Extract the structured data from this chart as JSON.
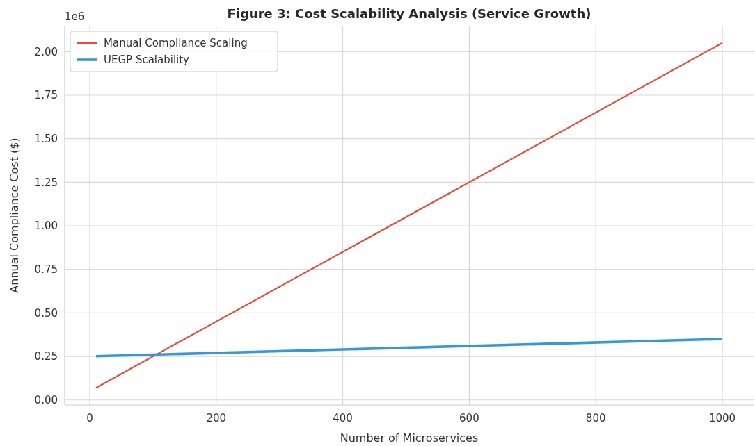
{
  "chart_data": {
    "type": "line",
    "title": "Figure 3: Cost Scalability Analysis (Service Growth)",
    "xlabel": "Number of Microservices",
    "ylabel": "Annual Compliance Cost ($)",
    "annotations": [
      "1e6"
    ],
    "x": [
      10,
      1000
    ],
    "series": [
      {
        "name": "Manual Compliance Scaling",
        "color": "#e74c3c",
        "values": [
          0.07,
          2.05
        ]
      },
      {
        "name": "UEGP Scalability",
        "color": "#3498db",
        "values": [
          0.251,
          0.35
        ]
      }
    ],
    "xlim": [
      -39.5,
      1049.5
    ],
    "xticks": [
      0,
      200,
      400,
      600,
      800,
      1000
    ],
    "ylim": [
      -0.029,
      2.149
    ],
    "yticks": [
      {
        "value": 0,
        "label": "0.00"
      },
      0.25,
      {
        "value": 0.5,
        "label": "0.50"
      },
      0.75,
      {
        "value": 1,
        "label": "1.00"
      },
      1.25,
      {
        "value": 1.5,
        "label": "1.50"
      },
      1.75,
      {
        "value": 2,
        "label": "2.00"
      }
    ],
    "grid": true,
    "legend": "top left",
    "marker": "none",
    "line_style": "solid"
  }
}
